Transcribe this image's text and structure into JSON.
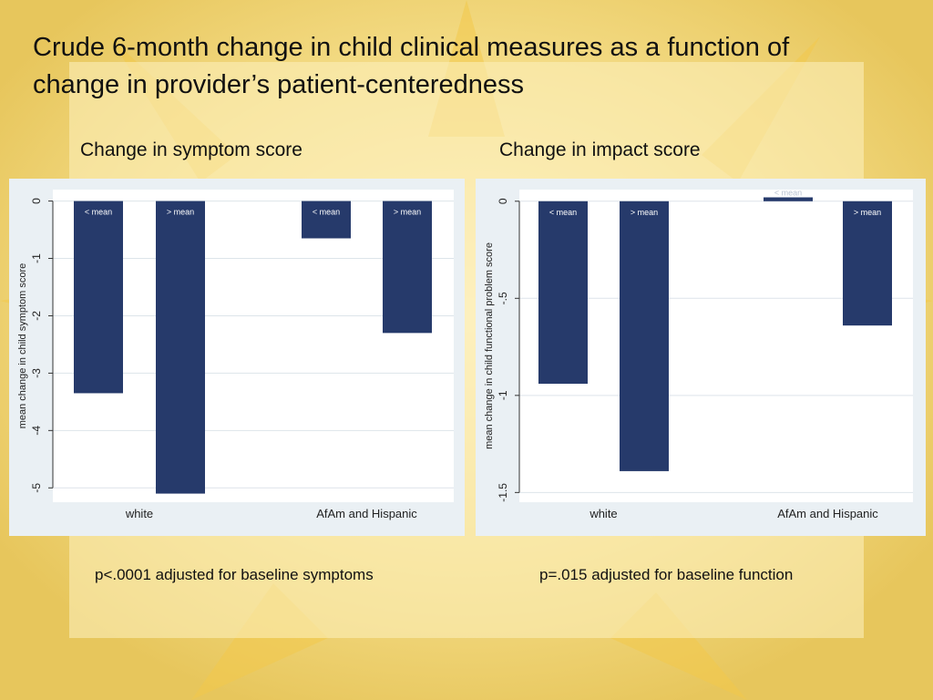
{
  "slide": {
    "title": "Crude 6-month change in child clinical measures as a function of change in provider’s patient-centeredness",
    "left_footnote": "p<.0001 adjusted for baseline symptoms",
    "right_footnote": "p=.015 adjusted for baseline function"
  },
  "colors": {
    "background": "#eccf6a",
    "bar": "#263a6b",
    "panel": "#eaf0f4",
    "plot": "#ffffff"
  },
  "chart_data": [
    {
      "type": "bar",
      "title": "Change in symptom score",
      "ylabel": "mean change in child symptom score",
      "ylim": [
        -5.25,
        0.2
      ],
      "yticks": [
        0,
        -1,
        -2,
        -3,
        -4,
        -5
      ],
      "ytick_labels": [
        "0",
        "-1",
        "-2",
        "-3",
        "-4",
        "-5"
      ],
      "groups": [
        "white",
        "AfAm and Hispanic"
      ],
      "categories": [
        "< mean",
        "> mean"
      ],
      "series": [
        {
          "group": "white",
          "values": [
            -3.35,
            -5.1
          ]
        },
        {
          "group": "AfAm and Hispanic",
          "values": [
            -0.65,
            -2.3
          ]
        }
      ],
      "grid": true,
      "legend": "none"
    },
    {
      "type": "bar",
      "title": "Change in impact score",
      "ylabel": "mean change in child functional problem score",
      "ylim": [
        -1.55,
        0.06
      ],
      "yticks": [
        0,
        -0.5,
        -1,
        -1.5
      ],
      "ytick_labels": [
        "0",
        "-.5",
        "-1",
        "-1.5"
      ],
      "groups": [
        "white",
        "AfAm and Hispanic"
      ],
      "categories": [
        "< mean",
        "> mean"
      ],
      "series": [
        {
          "group": "white",
          "values": [
            -0.94,
            -1.39
          ]
        },
        {
          "group": "AfAm and Hispanic",
          "values": [
            0.02,
            -0.64
          ]
        }
      ],
      "grid": true,
      "legend": "none"
    }
  ]
}
